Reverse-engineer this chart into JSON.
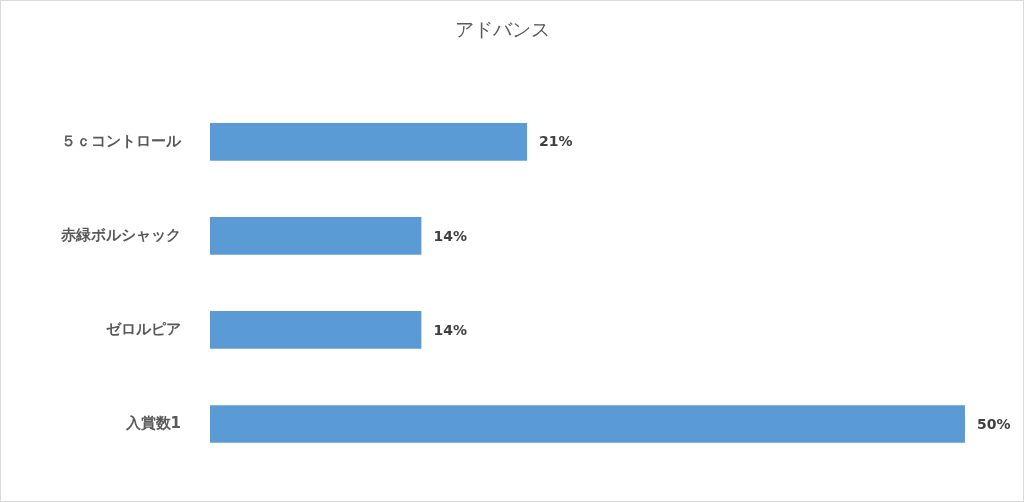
{
  "chart_data": {
    "type": "bar",
    "orientation": "horizontal",
    "title": "アドバンス",
    "categories": [
      "５ｃコントロール",
      "赤緑ボルシャック",
      "ゼロルピア",
      "入賞数1"
    ],
    "values": [
      21,
      14,
      14,
      50
    ],
    "value_labels": [
      "21%",
      "14%",
      "14%",
      "50%"
    ],
    "color": "#5b9bd5"
  }
}
